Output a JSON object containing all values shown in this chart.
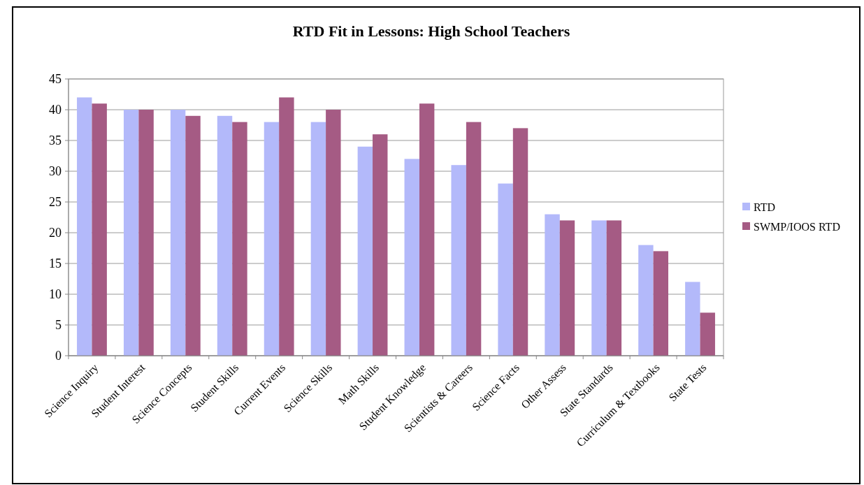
{
  "chart_data": {
    "type": "bar",
    "title": "RTD Fit in Lessons: High School Teachers",
    "categories": [
      "Science Inquiry",
      "Student Interest",
      "Science Concepts",
      "Student Skills",
      "Current Events",
      "Science Skills",
      "Math Skills",
      "Student Knowledge",
      "Scientists & Careers",
      "Science Facts",
      "Other Assess",
      "State Standards",
      "Curriculum & Textbooks",
      "State Tests"
    ],
    "series": [
      {
        "name": "RTD",
        "color": "#b3b9fa",
        "values": [
          42,
          40,
          40,
          39,
          38,
          38,
          34,
          32,
          31,
          28,
          23,
          22,
          18,
          12
        ]
      },
      {
        "name": "SWMP/IOOS RTD",
        "color": "#a55b84",
        "values": [
          41,
          40,
          39,
          38,
          42,
          40,
          36,
          41,
          38,
          37,
          22,
          22,
          17,
          7
        ]
      }
    ],
    "ylim": [
      0,
      45
    ],
    "yticks": [
      0,
      5,
      10,
      15,
      20,
      25,
      30,
      35,
      40,
      45
    ],
    "grid": "y",
    "legend": "right"
  }
}
